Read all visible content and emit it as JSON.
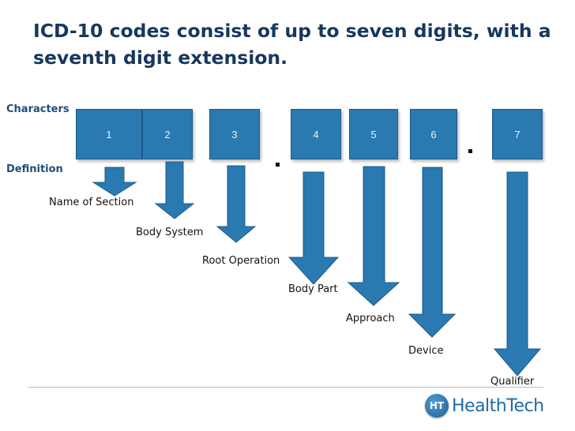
{
  "title": "ICD-10 codes consist of up to seven digits, with a seventh digit extension.",
  "labels": {
    "characters": "Characters",
    "definition": "Definition"
  },
  "characters": [
    "1",
    "2",
    "3",
    "4",
    "5",
    "6",
    "7"
  ],
  "separators": [
    ".",
    "."
  ],
  "definitions": [
    "Name of Section",
    "Body System",
    "Root Operation",
    "Body Part",
    "Approach",
    "Device",
    "Qualifier"
  ],
  "logo": {
    "badge": "HT",
    "name": "HealthTech"
  },
  "colors": {
    "box": "#2a79b0",
    "arrow": "#2a79b0",
    "title": "#17375e",
    "label": "#1f4e79"
  }
}
